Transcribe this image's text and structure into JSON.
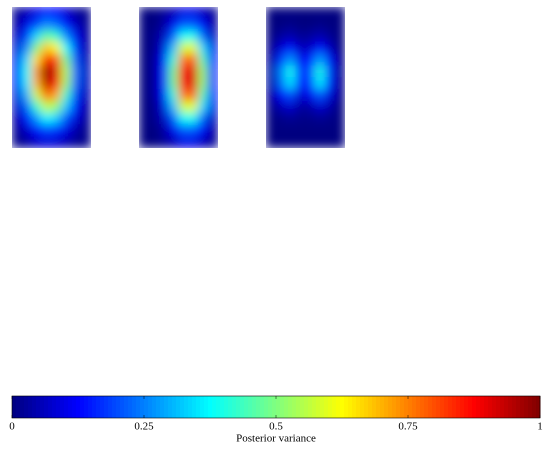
{
  "chart_data": {
    "type": "heatmap",
    "colormap": "jet",
    "panels": [
      {
        "values": [
          [
            0.02,
            0.05,
            0.1,
            0.14,
            0.13,
            0.08,
            0.03,
            0.01
          ],
          [
            0.03,
            0.1,
            0.19,
            0.26,
            0.23,
            0.14,
            0.06,
            0.02
          ],
          [
            0.06,
            0.18,
            0.34,
            0.47,
            0.42,
            0.26,
            0.11,
            0.03
          ],
          [
            0.08,
            0.26,
            0.5,
            0.68,
            0.62,
            0.38,
            0.16,
            0.04
          ],
          [
            0.11,
            0.34,
            0.65,
            0.88,
            0.8,
            0.49,
            0.2,
            0.05
          ],
          [
            0.12,
            0.38,
            0.73,
            0.99,
            0.9,
            0.55,
            0.23,
            0.06
          ],
          [
            0.12,
            0.36,
            0.7,
            0.95,
            0.86,
            0.53,
            0.22,
            0.06
          ],
          [
            0.09,
            0.3,
            0.58,
            0.78,
            0.71,
            0.43,
            0.18,
            0.05
          ],
          [
            0.07,
            0.22,
            0.42,
            0.57,
            0.52,
            0.32,
            0.13,
            0.03
          ],
          [
            0.04,
            0.14,
            0.27,
            0.37,
            0.33,
            0.2,
            0.09,
            0.02
          ],
          [
            0.02,
            0.07,
            0.14,
            0.19,
            0.17,
            0.1,
            0.04,
            0.01
          ],
          [
            0.01,
            0.03,
            0.07,
            0.09,
            0.08,
            0.05,
            0.02,
            0.01
          ]
        ]
      },
      {
        "values": [
          [
            0,
            0,
            0.02,
            0.05,
            0.1,
            0.1,
            0.06,
            0.02
          ],
          [
            0,
            0,
            0.03,
            0.11,
            0.21,
            0.21,
            0.12,
            0.03
          ],
          [
            0,
            0.01,
            0.06,
            0.21,
            0.38,
            0.39,
            0.22,
            0.06
          ],
          [
            0,
            0.01,
            0.09,
            0.31,
            0.58,
            0.6,
            0.34,
            0.1
          ],
          [
            0,
            0.02,
            0.12,
            0.41,
            0.76,
            0.78,
            0.45,
            0.13
          ],
          [
            0,
            0.02,
            0.14,
            0.48,
            0.88,
            0.91,
            0.52,
            0.15
          ],
          [
            0,
            0.02,
            0.14,
            0.48,
            0.88,
            0.91,
            0.52,
            0.15
          ],
          [
            0,
            0.02,
            0.12,
            0.41,
            0.76,
            0.78,
            0.45,
            0.13
          ],
          [
            0,
            0.01,
            0.09,
            0.31,
            0.58,
            0.6,
            0.34,
            0.1
          ],
          [
            0,
            0.01,
            0.06,
            0.21,
            0.38,
            0.39,
            0.22,
            0.06
          ],
          [
            0,
            0,
            0.03,
            0.11,
            0.21,
            0.21,
            0.12,
            0.03
          ],
          [
            0,
            0,
            0.02,
            0.05,
            0.1,
            0.1,
            0.06,
            0.02
          ]
        ]
      },
      {
        "values": [
          [
            0,
            0,
            0,
            0,
            0,
            0,
            0,
            0
          ],
          [
            0,
            0,
            0.01,
            0,
            0,
            0.01,
            0,
            0
          ],
          [
            0,
            0.03,
            0.05,
            0.02,
            0.03,
            0.05,
            0.02,
            0
          ],
          [
            0.01,
            0.08,
            0.14,
            0.06,
            0.07,
            0.14,
            0.06,
            0
          ],
          [
            0.02,
            0.17,
            0.27,
            0.11,
            0.15,
            0.28,
            0.12,
            0.01
          ],
          [
            0.03,
            0.24,
            0.39,
            0.16,
            0.21,
            0.4,
            0.17,
            0.01
          ],
          [
            0.03,
            0.22,
            0.35,
            0.14,
            0.19,
            0.36,
            0.15,
            0.01
          ],
          [
            0.02,
            0.12,
            0.2,
            0.08,
            0.11,
            0.21,
            0.09,
            0.01
          ],
          [
            0.01,
            0.05,
            0.08,
            0.03,
            0.04,
            0.08,
            0.04,
            0
          ],
          [
            0,
            0.01,
            0.02,
            0.01,
            0.01,
            0.02,
            0.01,
            0
          ],
          [
            0,
            0,
            0,
            0,
            0,
            0,
            0,
            0
          ],
          [
            0,
            0,
            0,
            0,
            0,
            0,
            0,
            0
          ]
        ]
      }
    ],
    "zlim": [
      0,
      1
    ],
    "zticks": [
      0,
      0.25,
      0.5,
      0.75,
      1
    ],
    "zlabel": "Posterior variance"
  }
}
